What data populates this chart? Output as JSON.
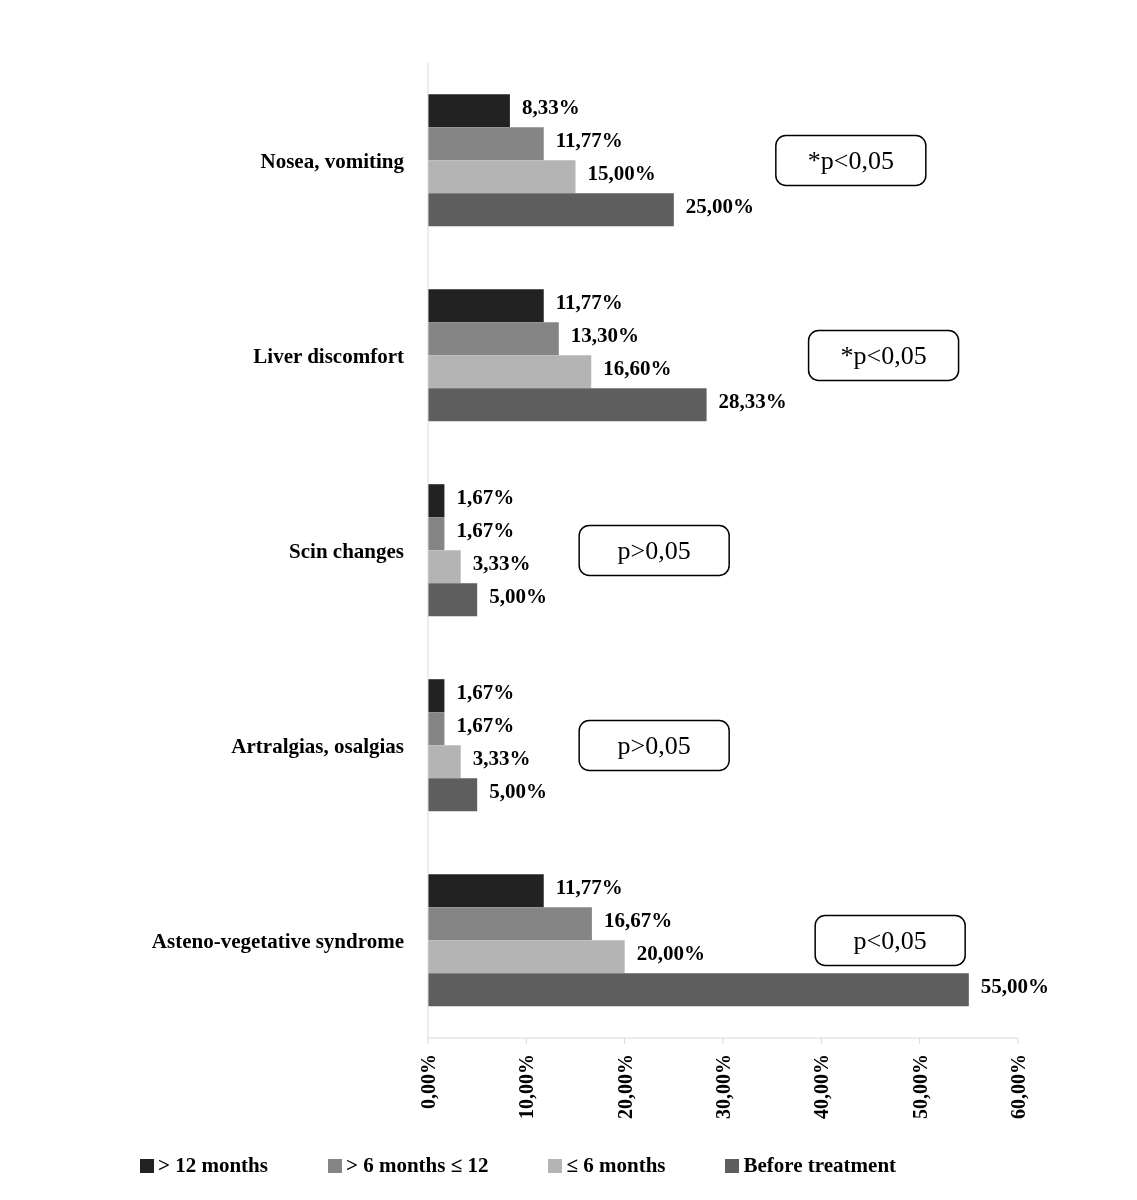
{
  "chart_data": {
    "type": "bar",
    "orientation": "horizontal",
    "categories": [
      "Nosea, vomiting",
      "Liver discomfort",
      "Scin changes",
      "Artralgias, osalgias",
      "Asteno-vegetative syndrome"
    ],
    "series": [
      {
        "name": "> 12 months",
        "color": "#222222",
        "values": [
          8.33,
          11.77,
          1.67,
          1.67,
          11.77
        ],
        "value_labels": [
          "8,33%",
          "11,77%",
          "1,67%",
          "1,67%",
          "11,77%"
        ]
      },
      {
        "name": "> 6 months ≤ 12",
        "color": "#858585",
        "values": [
          11.77,
          13.3,
          1.67,
          1.67,
          16.67
        ],
        "value_labels": [
          "11,77%",
          "13,30%",
          "1,67%",
          "1,67%",
          "16,67%"
        ]
      },
      {
        "name": "≤ 6 months",
        "color": "#b4b4b4",
        "values": [
          15,
          16.6,
          3.33,
          3.33,
          20
        ],
        "value_labels": [
          "15,00%",
          "16,60%",
          "3,33%",
          "3,33%",
          "20,00%"
        ]
      },
      {
        "name": "Before treatment",
        "color": "#5e5e5e",
        "values": [
          25,
          28.33,
          5,
          5,
          55
        ],
        "value_labels": [
          "25,00%",
          "28,33%",
          "5,00%",
          "5,00%",
          "55,00%"
        ]
      }
    ],
    "xlim": [
      0,
      60
    ],
    "xticks": [
      {
        "value": 0,
        "label": "0,00%"
      },
      {
        "value": 10,
        "label": "10,00%"
      },
      {
        "value": 20,
        "label": "20,00%"
      },
      {
        "value": 30,
        "label": "30,00%"
      },
      {
        "value": 40,
        "label": "40,00%"
      },
      {
        "value": 50,
        "label": "50,00%"
      },
      {
        "value": 60,
        "label": "60,00%"
      }
    ],
    "annotations": [
      "*p<0,05",
      "*p<0,05",
      "p>0,05",
      "p>0,05",
      "p<0,05"
    ],
    "grid": false,
    "legend": "bottom"
  }
}
